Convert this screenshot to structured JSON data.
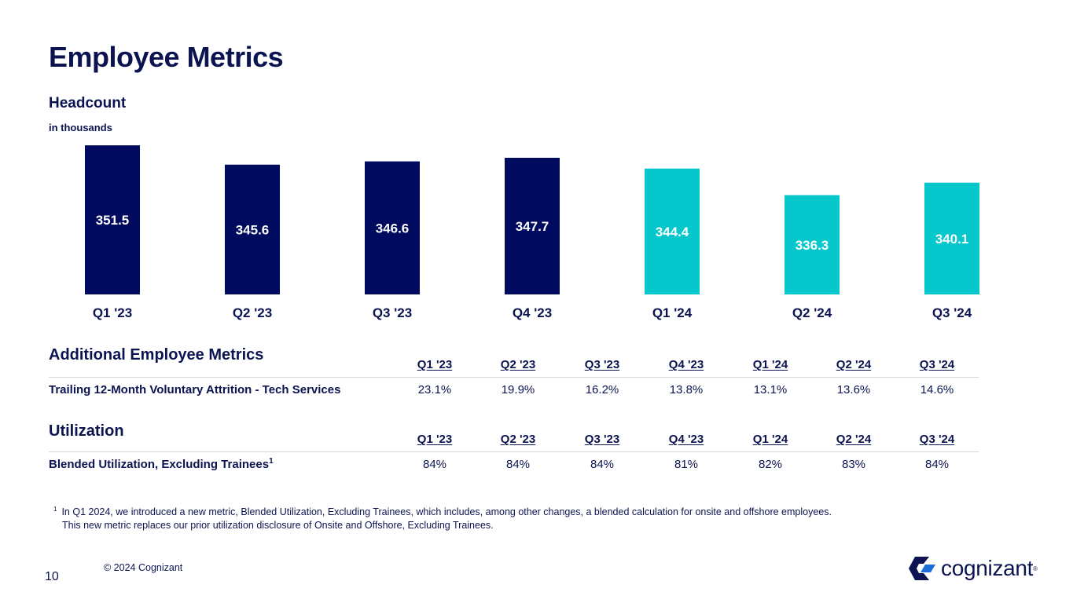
{
  "page": {
    "title": "Employee Metrics",
    "copyright": "© 2024 Cognizant",
    "page_number": "10",
    "logo_text": "cognizant",
    "logo_tm": "®"
  },
  "chart_data": {
    "type": "bar",
    "title": "Headcount",
    "subtitle": "in thousands",
    "categories": [
      "Q1 '23",
      "Q2 '23",
      "Q3 '23",
      "Q4 '23",
      "Q1 '24",
      "Q2 '24",
      "Q3 '24"
    ],
    "values": [
      351.5,
      345.6,
      346.6,
      347.7,
      344.4,
      336.3,
      340.1
    ],
    "colors": [
      "#000a5e",
      "#000a5e",
      "#000a5e",
      "#000a5e",
      "#06c7cc",
      "#06c7cc",
      "#06c7cc"
    ],
    "label_color": "#ffffff",
    "grid": false,
    "ylim": [
      306,
      352
    ]
  },
  "attrition": {
    "title": "Additional Employee Metrics",
    "columns": [
      "Q1 '23",
      "Q2 '23",
      "Q3 '23",
      "Q4 '23",
      "Q1 '24",
      "Q2 '24",
      "Q3 '24"
    ],
    "row_label": "Trailing 12-Month Voluntary Attrition - Tech Services",
    "values": [
      "23.1%",
      "19.9%",
      "16.2%",
      "13.8%",
      "13.1%",
      "13.6%",
      "14.6%"
    ]
  },
  "utilization": {
    "title": "Utilization",
    "columns": [
      "Q1 '23",
      "Q2 '23",
      "Q3 '23",
      "Q4 '23",
      "Q1 '24",
      "Q2 '24",
      "Q3 '24"
    ],
    "row_label": "Blended Utilization, Excluding Trainees",
    "row_label_sup": "1",
    "values": [
      "84%",
      "84%",
      "84%",
      "81%",
      "82%",
      "83%",
      "84%"
    ]
  },
  "footnote": {
    "marker": "1",
    "line1": "In Q1 2024, we introduced a new metric, Blended Utilization, Excluding Trainees, which includes, among other changes, a blended calculation for onsite and offshore employees.",
    "line2": "This new metric replaces our prior utilization disclosure of Onsite and Offshore, Excluding Trainees."
  },
  "colors": {
    "navy": "#0b1450",
    "teal": "#06c7cc",
    "rule": "#d4d6de"
  }
}
